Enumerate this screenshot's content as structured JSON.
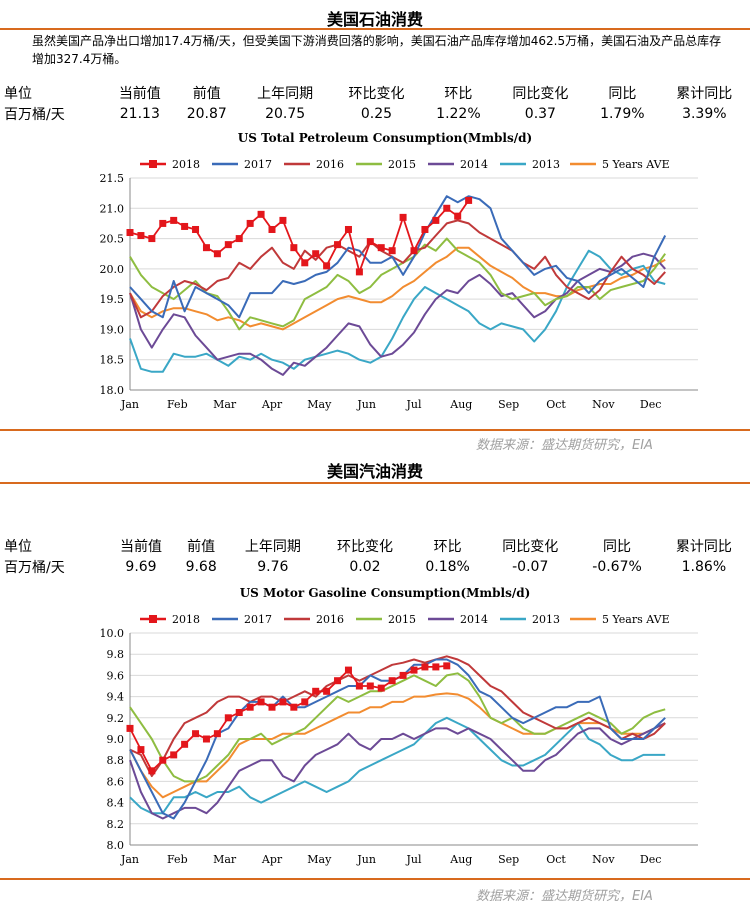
{
  "sections": [
    {
      "title": "美国石油消费",
      "summary": "虽然美国产品净出口增加17.4万桶/天，但受美国下游消费回落的影响，美国石油产品库存增加462.5万桶，美国石油及产品总库存增加327.4万桶。",
      "stats": {
        "headers": [
          "单位",
          "当前值",
          "前值",
          "上年同期",
          "环比变化",
          "环比",
          "同比变化",
          "同比",
          "累计同比"
        ],
        "values": [
          "百万桶/天",
          "21.13",
          "20.87",
          "20.75",
          "0.25",
          "1.22%",
          "0.37",
          "1.79%",
          "3.39%"
        ]
      },
      "source": "数据来源：盛达期货研究，EIA"
    },
    {
      "title": "美国汽油消费",
      "stats": {
        "headers": [
          "单位",
          "当前值",
          "前值",
          "上年同期",
          "环比变化",
          "环比",
          "同比变化",
          "同比",
          "累计同比"
        ],
        "values": [
          "百万桶/天",
          "9.69",
          "9.68",
          "9.76",
          "0.02",
          "0.18%",
          "-0.07",
          "-0.67%",
          "1.86%"
        ]
      },
      "source": "数据来源：盛达期货研究，EIA"
    }
  ],
  "colors": {
    "2018": "#e3161b",
    "2017": "#3a6bb8",
    "2016": "#c0393a",
    "2015": "#8ebd41",
    "2014": "#6c4a96",
    "2013": "#3aa7c6",
    "5 Years AVE": "#f28c30",
    "divider": "#d86a1e"
  },
  "chart_data": [
    {
      "type": "line",
      "title": "US Total Petroleum Consumption(Mmbls/d)",
      "x_ticks": [
        "Jan",
        "Feb",
        "Mar",
        "Apr",
        "May",
        "Jun",
        "Jul",
        "Aug",
        "Sep",
        "Oct",
        "Nov",
        "Dec"
      ],
      "ylim": [
        18.0,
        21.5
      ],
      "y_ticks": [
        "18.0",
        "18.5",
        "19.0",
        "19.5",
        "20.0",
        "20.5",
        "21.0",
        "21.5"
      ],
      "grid": true,
      "legend": "top",
      "series": [
        {
          "name": "2018",
          "markers": true,
          "values": [
            20.6,
            20.55,
            20.5,
            20.75,
            20.8,
            20.7,
            20.65,
            20.35,
            20.25,
            20.4,
            20.5,
            20.75,
            20.9,
            20.65,
            20.8,
            20.35,
            20.1,
            20.25,
            20.05,
            20.4,
            20.65,
            19.95,
            20.45,
            20.35,
            20.3,
            20.85,
            20.3,
            20.65,
            20.8,
            21.0,
            20.87,
            21.13
          ]
        },
        {
          "name": "2017",
          "values": [
            19.7,
            19.5,
            19.3,
            19.2,
            19.8,
            19.3,
            19.7,
            19.6,
            19.5,
            19.4,
            19.2,
            19.6,
            19.6,
            19.6,
            19.8,
            19.75,
            19.8,
            19.9,
            19.95,
            20.1,
            20.35,
            20.3,
            20.1,
            20.1,
            20.2,
            19.9,
            20.2,
            20.6,
            20.9,
            21.2,
            21.1,
            21.2,
            21.15,
            21.0,
            20.5,
            20.3,
            20.1,
            19.9,
            20.0,
            20.05,
            19.85,
            19.8,
            19.6,
            19.8,
            19.9,
            20.0,
            19.85,
            19.7,
            20.2,
            20.55
          ]
        },
        {
          "name": "2016",
          "values": [
            19.6,
            19.2,
            19.3,
            19.55,
            19.7,
            19.8,
            19.75,
            19.65,
            19.8,
            19.85,
            20.1,
            20.0,
            20.2,
            20.35,
            20.1,
            20.0,
            20.3,
            20.15,
            20.35,
            20.4,
            20.3,
            20.2,
            20.45,
            20.3,
            20.2,
            20.1,
            20.3,
            20.35,
            20.55,
            20.75,
            20.8,
            20.75,
            20.6,
            20.5,
            20.4,
            20.3,
            20.1,
            20.0,
            20.2,
            19.9,
            19.7,
            19.6,
            19.5,
            19.65,
            19.95,
            20.2,
            20.0,
            19.9,
            19.75,
            19.95
          ]
        },
        {
          "name": "2015",
          "values": [
            20.2,
            19.9,
            19.7,
            19.6,
            19.5,
            19.65,
            19.8,
            19.6,
            19.55,
            19.3,
            19.0,
            19.2,
            19.15,
            19.1,
            19.05,
            19.15,
            19.5,
            19.6,
            19.7,
            19.9,
            19.8,
            19.6,
            19.7,
            19.9,
            20.0,
            20.1,
            20.2,
            20.4,
            20.3,
            20.5,
            20.3,
            20.2,
            20.1,
            19.9,
            19.6,
            19.5,
            19.55,
            19.6,
            19.4,
            19.5,
            19.55,
            19.7,
            19.7,
            19.5,
            19.65,
            19.7,
            19.75,
            19.8,
            20.0,
            20.25
          ]
        },
        {
          "name": "2014",
          "values": [
            19.6,
            19.0,
            18.7,
            19.0,
            19.25,
            19.2,
            18.9,
            18.7,
            18.5,
            18.55,
            18.6,
            18.6,
            18.5,
            18.35,
            18.25,
            18.45,
            18.4,
            18.55,
            18.7,
            18.9,
            19.1,
            19.05,
            18.75,
            18.55,
            18.6,
            18.75,
            18.95,
            19.25,
            19.5,
            19.65,
            19.6,
            19.8,
            19.9,
            19.75,
            19.55,
            19.6,
            19.4,
            19.2,
            19.3,
            19.5,
            19.6,
            19.8,
            19.9,
            20.0,
            19.95,
            20.05,
            20.2,
            20.25,
            20.2,
            20.0
          ]
        },
        {
          "name": "2013",
          "values": [
            18.85,
            18.35,
            18.3,
            18.3,
            18.6,
            18.55,
            18.55,
            18.6,
            18.5,
            18.4,
            18.55,
            18.5,
            18.6,
            18.5,
            18.45,
            18.35,
            18.5,
            18.55,
            18.6,
            18.65,
            18.6,
            18.5,
            18.45,
            18.55,
            18.85,
            19.2,
            19.5,
            19.7,
            19.6,
            19.5,
            19.4,
            19.3,
            19.1,
            19.0,
            19.1,
            19.05,
            19.0,
            18.8,
            19.0,
            19.3,
            19.7,
            20.0,
            20.3,
            20.2,
            20.0,
            19.9,
            20.0,
            20.05,
            19.8,
            19.75
          ]
        },
        {
          "name": "5 Years AVE",
          "values": [
            19.6,
            19.3,
            19.2,
            19.3,
            19.35,
            19.35,
            19.3,
            19.25,
            19.15,
            19.2,
            19.15,
            19.05,
            19.1,
            19.05,
            19.0,
            19.1,
            19.2,
            19.3,
            19.4,
            19.5,
            19.55,
            19.5,
            19.45,
            19.45,
            19.55,
            19.7,
            19.8,
            19.95,
            20.1,
            20.2,
            20.35,
            20.35,
            20.2,
            20.05,
            19.95,
            19.85,
            19.7,
            19.6,
            19.6,
            19.55,
            19.55,
            19.65,
            19.7,
            19.75,
            19.75,
            19.85,
            19.9,
            20.0,
            20.05,
            20.15
          ]
        }
      ]
    },
    {
      "type": "line",
      "title": "US Motor Gasoline Consumption(Mmbls/d)",
      "x_ticks": [
        "Jan",
        "Feb",
        "Mar",
        "Apr",
        "May",
        "Jun",
        "Jul",
        "Aug",
        "Sep",
        "Oct",
        "Nov",
        "Dec"
      ],
      "ylim": [
        8.0,
        10.0
      ],
      "y_ticks": [
        "8.0",
        "8.2",
        "8.4",
        "8.6",
        "8.8",
        "9.0",
        "9.2",
        "9.4",
        "9.6",
        "9.8",
        "10.0"
      ],
      "grid": true,
      "legend": "top",
      "series": [
        {
          "name": "2018",
          "markers": true,
          "values": [
            9.1,
            8.9,
            8.7,
            8.8,
            8.85,
            8.95,
            9.05,
            9.0,
            9.05,
            9.2,
            9.25,
            9.3,
            9.35,
            9.3,
            9.35,
            9.3,
            9.35,
            9.45,
            9.45,
            9.55,
            9.65,
            9.5,
            9.5,
            9.48,
            9.55,
            9.6,
            9.65,
            9.68,
            9.68,
            9.69
          ]
        },
        {
          "name": "2017",
          "values": [
            8.9,
            8.7,
            8.5,
            8.3,
            8.25,
            8.4,
            8.6,
            8.8,
            9.05,
            9.1,
            9.25,
            9.35,
            9.35,
            9.3,
            9.4,
            9.3,
            9.3,
            9.35,
            9.4,
            9.45,
            9.5,
            9.5,
            9.6,
            9.55,
            9.55,
            9.6,
            9.7,
            9.7,
            9.75,
            9.75,
            9.7,
            9.6,
            9.45,
            9.4,
            9.3,
            9.2,
            9.15,
            9.2,
            9.25,
            9.3,
            9.3,
            9.35,
            9.35,
            9.4,
            9.1,
            9.0,
            9.0,
            9.0,
            9.1,
            9.2
          ]
        },
        {
          "name": "2016",
          "values": [
            8.9,
            8.85,
            8.65,
            8.8,
            9.0,
            9.15,
            9.2,
            9.25,
            9.35,
            9.4,
            9.4,
            9.35,
            9.4,
            9.4,
            9.35,
            9.4,
            9.45,
            9.4,
            9.5,
            9.55,
            9.6,
            9.55,
            9.6,
            9.65,
            9.7,
            9.72,
            9.75,
            9.72,
            9.75,
            9.78,
            9.75,
            9.7,
            9.6,
            9.5,
            9.45,
            9.35,
            9.25,
            9.2,
            9.15,
            9.1,
            9.1,
            9.15,
            9.2,
            9.15,
            9.1,
            9.0,
            9.05,
            9.0,
            9.05,
            9.15
          ]
        },
        {
          "name": "2015",
          "values": [
            9.3,
            9.15,
            9.0,
            8.8,
            8.65,
            8.6,
            8.6,
            8.65,
            8.75,
            8.85,
            9.0,
            9.0,
            9.05,
            8.95,
            9.0,
            9.05,
            9.1,
            9.2,
            9.3,
            9.4,
            9.35,
            9.4,
            9.45,
            9.45,
            9.5,
            9.55,
            9.6,
            9.55,
            9.5,
            9.6,
            9.62,
            9.55,
            9.4,
            9.2,
            9.15,
            9.2,
            9.1,
            9.05,
            9.05,
            9.1,
            9.15,
            9.2,
            9.25,
            9.2,
            9.15,
            9.05,
            9.1,
            9.2,
            9.25,
            9.28
          ]
        },
        {
          "name": "2014",
          "values": [
            8.8,
            8.5,
            8.3,
            8.25,
            8.3,
            8.35,
            8.35,
            8.3,
            8.4,
            8.55,
            8.7,
            8.75,
            8.8,
            8.8,
            8.65,
            8.6,
            8.75,
            8.85,
            8.9,
            8.95,
            9.05,
            8.95,
            8.9,
            9.0,
            9.0,
            9.05,
            9.0,
            9.05,
            9.1,
            9.1,
            9.05,
            9.1,
            9.05,
            9.0,
            8.9,
            8.8,
            8.7,
            8.7,
            8.8,
            8.85,
            8.95,
            9.05,
            9.1,
            9.1,
            9.0,
            8.95,
            9.0,
            9.05,
            9.1,
            9.15
          ]
        },
        {
          "name": "2013",
          "values": [
            8.45,
            8.35,
            8.3,
            8.3,
            8.45,
            8.45,
            8.5,
            8.45,
            8.5,
            8.5,
            8.55,
            8.45,
            8.4,
            8.45,
            8.5,
            8.55,
            8.6,
            8.55,
            8.5,
            8.55,
            8.6,
            8.7,
            8.75,
            8.8,
            8.85,
            8.9,
            8.95,
            9.05,
            9.15,
            9.2,
            9.15,
            9.1,
            9.0,
            8.9,
            8.8,
            8.75,
            8.75,
            8.8,
            8.85,
            8.95,
            9.05,
            9.15,
            9.0,
            8.95,
            8.85,
            8.8,
            8.8,
            8.85,
            8.85,
            8.85
          ]
        },
        {
          "name": "5 Years AVE",
          "values": [
            8.9,
            8.7,
            8.55,
            8.45,
            8.5,
            8.55,
            8.6,
            8.6,
            8.7,
            8.8,
            8.95,
            9.0,
            9.0,
            9.0,
            9.05,
            9.05,
            9.05,
            9.1,
            9.15,
            9.2,
            9.25,
            9.25,
            9.3,
            9.3,
            9.35,
            9.35,
            9.4,
            9.4,
            9.42,
            9.43,
            9.42,
            9.38,
            9.3,
            9.2,
            9.15,
            9.1,
            9.05,
            9.05,
            9.05,
            9.1,
            9.1,
            9.15,
            9.15,
            9.15,
            9.1,
            9.05,
            9.05,
            9.05,
            9.1,
            9.15
          ]
        }
      ]
    }
  ]
}
